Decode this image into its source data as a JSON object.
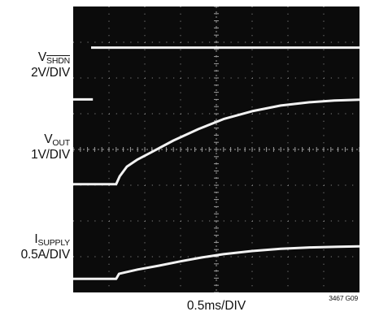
{
  "labels": {
    "shdn_prefix": "V",
    "shdn_sub": "SHDN",
    "shdn_scale": "2V/DIV",
    "vout_prefix": "V",
    "vout_sub": "OUT",
    "vout_scale": "1V/DIV",
    "isupply_prefix": "I",
    "isupply_sub": "SUPPLY",
    "isupply_scale": "0.5A/DIV",
    "x_scale": "0.5ms/DIV",
    "figure_code": "3467 G09"
  },
  "colors": {
    "screen": "#0b0b0b",
    "trace": "#f2f2f2",
    "grid": "#9a9a9a"
  },
  "chart_data": {
    "type": "line",
    "title": "",
    "xlabel": "0.5ms/DIV",
    "grid": true,
    "x_divisions": 8,
    "y_divisions": 8,
    "x_unit": "div",
    "y_unit": "div",
    "series": [
      {
        "name": "V_SHDN",
        "scale": "2V/DIV",
        "x": [
          0.5,
          8
        ],
        "y": [
          6.85,
          6.85
        ]
      },
      {
        "name": "V_SHDN marker",
        "scale": "",
        "x": [
          0.0,
          0.55
        ],
        "y": [
          5.4,
          5.4
        ]
      },
      {
        "name": "V_OUT",
        "scale": "1V/DIV",
        "x": [
          0,
          1.2,
          1.3,
          1.5,
          1.8,
          2.2,
          2.8,
          3.5,
          4.2,
          5.0,
          5.8,
          6.6,
          7.3,
          8
        ],
        "y": [
          3.03,
          3.03,
          3.25,
          3.52,
          3.72,
          3.93,
          4.25,
          4.57,
          4.85,
          5.07,
          5.23,
          5.32,
          5.37,
          5.39
        ]
      },
      {
        "name": "I_SUPPLY",
        "scale": "0.5A/DIV",
        "x": [
          0,
          1.2,
          1.28,
          1.4,
          1.8,
          2.4,
          3.0,
          3.6,
          4.2,
          5.0,
          5.8,
          6.6,
          7.4,
          8
        ],
        "y": [
          0.38,
          0.38,
          0.52,
          0.55,
          0.64,
          0.75,
          0.87,
          0.98,
          1.07,
          1.16,
          1.22,
          1.26,
          1.28,
          1.29
        ]
      }
    ]
  }
}
